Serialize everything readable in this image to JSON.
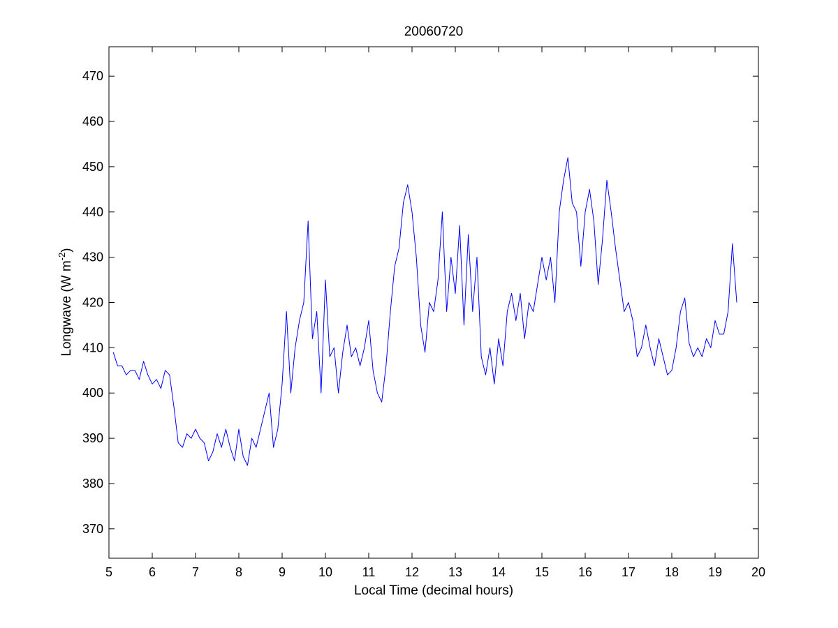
{
  "chart_data": {
    "type": "line",
    "title": "20060720",
    "xlabel": "Local Time (decimal hours)",
    "ylabel_prefix": "Longwave (W m",
    "ylabel_sup": "-2",
    "ylabel_suffix": ")",
    "xlim": [
      5,
      20
    ],
    "ylim": [
      363.5,
      476.5
    ],
    "xticks": [
      5,
      6,
      7,
      8,
      9,
      10,
      11,
      12,
      13,
      14,
      15,
      16,
      17,
      18,
      19,
      20
    ],
    "yticks": [
      370,
      380,
      390,
      400,
      410,
      420,
      430,
      440,
      450,
      460,
      470
    ],
    "grid": false,
    "line_color": "#0000ff",
    "series": [
      {
        "x": [
          5.1,
          5.2,
          5.3,
          5.4,
          5.5,
          5.6,
          5.7,
          5.8,
          5.9,
          6.0,
          6.1,
          6.2,
          6.3,
          6.4,
          6.5,
          6.6,
          6.7,
          6.8,
          6.9,
          7.0,
          7.1,
          7.2,
          7.3,
          7.4,
          7.5,
          7.6,
          7.7,
          7.8,
          7.9,
          8.0,
          8.1,
          8.2,
          8.3,
          8.4,
          8.5,
          8.6,
          8.7,
          8.8,
          8.9,
          9.0,
          9.1,
          9.2,
          9.3,
          9.4,
          9.5,
          9.6,
          9.7,
          9.8,
          9.9,
          10.0,
          10.1,
          10.2,
          10.3,
          10.4,
          10.5,
          10.6,
          10.7,
          10.8,
          10.9,
          11.0,
          11.1,
          11.2,
          11.3,
          11.4,
          11.5,
          11.6,
          11.7,
          11.8,
          11.9,
          12.0,
          12.1,
          12.2,
          12.3,
          12.4,
          12.5,
          12.6,
          12.7,
          12.8,
          12.9,
          13.0,
          13.1,
          13.2,
          13.3,
          13.4,
          13.5,
          13.6,
          13.7,
          13.8,
          13.9,
          14.0,
          14.1,
          14.2,
          14.3,
          14.4,
          14.5,
          14.6,
          14.7,
          14.8,
          14.9,
          15.0,
          15.1,
          15.2,
          15.3,
          15.4,
          15.5,
          15.6,
          15.7,
          15.8,
          15.9,
          16.0,
          16.1,
          16.2,
          16.3,
          16.4,
          16.5,
          16.6,
          16.7,
          16.8,
          16.9,
          17.0,
          17.1,
          17.2,
          17.3,
          17.4,
          17.5,
          17.6,
          17.7,
          17.8,
          17.9,
          18.0,
          18.1,
          18.2,
          18.3,
          18.4,
          18.5,
          18.6,
          18.7,
          18.8,
          18.9,
          19.0,
          19.1,
          19.2,
          19.3,
          19.4,
          19.5
        ],
        "y": [
          409,
          406,
          406,
          404,
          405,
          405,
          403,
          407,
          404,
          402,
          403,
          401,
          405,
          404,
          397,
          389,
          388,
          391,
          390,
          392,
          390,
          389,
          385,
          387,
          391,
          388,
          392,
          388,
          385,
          392,
          386,
          384,
          390,
          388,
          392,
          396,
          400,
          388,
          392,
          402,
          418,
          400,
          410,
          416,
          420,
          438,
          412,
          418,
          400,
          425,
          408,
          410,
          400,
          409,
          415,
          408,
          410,
          406,
          410,
          416,
          405,
          400,
          398,
          406,
          418,
          428,
          432,
          442,
          446,
          440,
          430,
          415,
          409,
          420,
          418,
          425,
          440,
          418,
          430,
          422,
          437,
          415,
          435,
          418,
          430,
          408,
          404,
          410,
          402,
          412,
          406,
          418,
          422,
          416,
          422,
          412,
          420,
          418,
          424,
          430,
          425,
          430,
          420,
          440,
          447,
          452,
          442,
          440,
          428,
          440,
          445,
          438,
          424,
          434,
          447,
          440,
          432,
          425,
          418,
          420,
          416,
          408,
          410,
          415,
          410,
          406,
          412,
          408,
          404,
          405,
          410,
          418,
          421,
          411,
          408,
          410,
          408,
          412,
          410,
          416,
          413,
          413,
          418,
          433,
          420
        ]
      }
    ]
  }
}
